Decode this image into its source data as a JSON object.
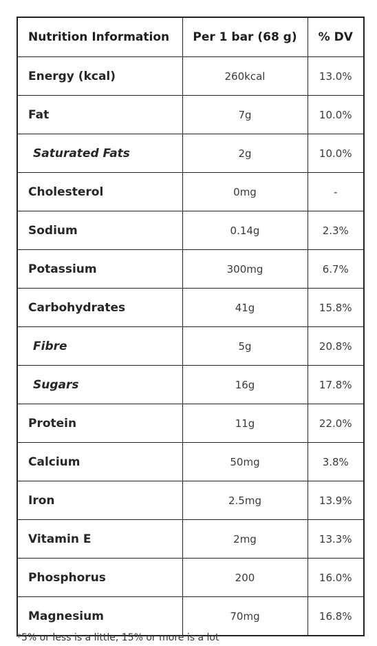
{
  "table": {
    "headers": {
      "name": "Nutrition Information",
      "amount": "Per 1 bar (68 g)",
      "dv": "% DV"
    },
    "rows": [
      {
        "name": "Energy (kcal)",
        "amount": "260kcal",
        "dv": "13.0%"
      },
      {
        "name": "Fat",
        "amount": "7g",
        "dv": "10.0%"
      },
      {
        "name": "Saturated Fats",
        "amount": "2g",
        "dv": "10.0%"
      },
      {
        "name": "Cholesterol",
        "amount": "0mg",
        "dv": "-"
      },
      {
        "name": "Sodium",
        "amount": "0.14g",
        "dv": "2.3%"
      },
      {
        "name": "Potassium",
        "amount": "300mg",
        "dv": "6.7%"
      },
      {
        "name": "Carbohydrates",
        "amount": "41g",
        "dv": "15.8%"
      },
      {
        "name": "Fibre",
        "amount": "5g",
        "dv": "20.8%"
      },
      {
        "name": "Sugars",
        "amount": "16g",
        "dv": "17.8%"
      },
      {
        "name": "Protein",
        "amount": "11g",
        "dv": "22.0%"
      },
      {
        "name": "Calcium",
        "amount": "50mg",
        "dv": "3.8%"
      },
      {
        "name": "Iron",
        "amount": "2.5mg",
        "dv": "13.9%"
      },
      {
        "name": "Vitamin E",
        "amount": "2mg",
        "dv": "13.3%"
      },
      {
        "name": "Phosphorus",
        "amount": "200",
        "dv": "16.0%"
      },
      {
        "name": "Magnesium",
        "amount": "70mg",
        "dv": "16.8%"
      }
    ]
  },
  "footnote": "*5% or less is a little, 15% or more is a lot"
}
